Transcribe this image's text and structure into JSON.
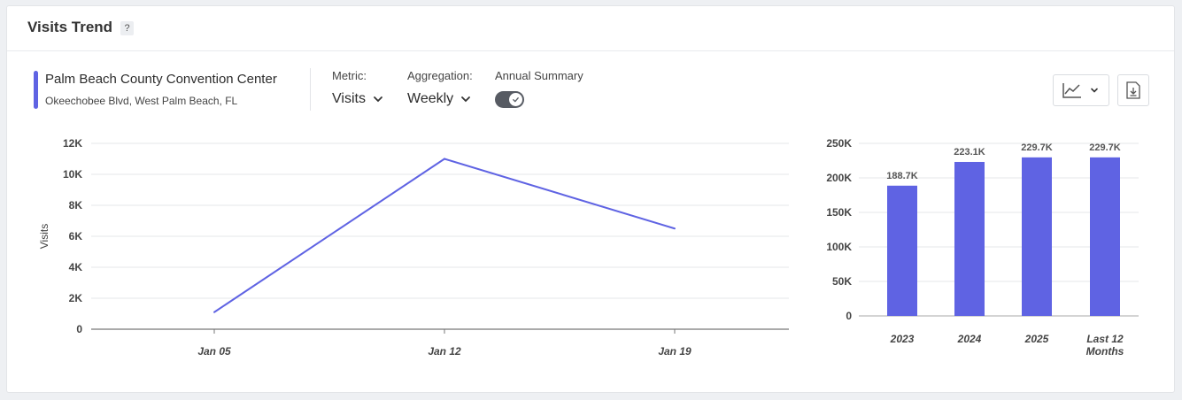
{
  "header": {
    "title": "Visits Trend",
    "help_label": "?"
  },
  "location": {
    "name": "Palm Beach County Convention Center",
    "address": "Okeechobee Blvd, West Palm Beach, FL",
    "accent_color": "#5f63e3"
  },
  "controls": {
    "metric": {
      "label": "Metric:",
      "value": "Visits"
    },
    "aggregation": {
      "label": "Aggregation:",
      "value": "Weekly"
    },
    "annual_summary": {
      "label": "Annual Summary",
      "enabled": true
    }
  },
  "toolbar": {
    "chart_type_icon": "line-chart-icon",
    "download_icon": "download-icon"
  },
  "chart_data": [
    {
      "type": "line",
      "x": [
        "Jan 05",
        "Jan 12",
        "Jan 19"
      ],
      "series": [
        {
          "values": [
            1100,
            11000,
            6500
          ],
          "color": "#5f63e3"
        }
      ],
      "ylabel": "Visits",
      "ylim": [
        0,
        12000
      ],
      "yticks": [
        0,
        2000,
        4000,
        6000,
        8000,
        10000,
        12000
      ],
      "ytick_labels": [
        "0",
        "2K",
        "4K",
        "6K",
        "8K",
        "10K",
        "12K"
      ],
      "grid": true
    },
    {
      "type": "bar",
      "categories": [
        "2023",
        "2024",
        "2025",
        "Last 12 Months"
      ],
      "values": [
        188700,
        223100,
        229700,
        229700
      ],
      "data_labels": [
        "188.7K",
        "223.1K",
        "229.7K",
        "229.7K"
      ],
      "color": "#5f63e3",
      "ylim": [
        0,
        250000
      ],
      "yticks": [
        0,
        50000,
        100000,
        150000,
        200000,
        250000
      ],
      "ytick_labels": [
        "0",
        "50K",
        "100K",
        "150K",
        "200K",
        "250K"
      ],
      "grid": true
    }
  ]
}
